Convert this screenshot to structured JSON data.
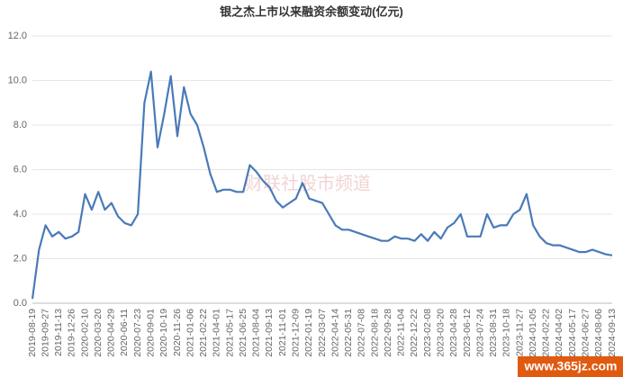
{
  "chart_data": {
    "type": "line",
    "title": "银之杰上市以来融资余额变动(亿元)",
    "watermark": "财联社股市频道",
    "site": "www.365jz.com",
    "categories": [
      "2019-08-19",
      null,
      "2019-09-27",
      null,
      "2019-11-13",
      null,
      "2019-12-26",
      null,
      "2020-02-10",
      null,
      "2020-03-20",
      null,
      "2020-04-29",
      null,
      "2020-06-11",
      null,
      "2020-07-23",
      null,
      "2020-09-01",
      null,
      "2020-10-19",
      null,
      "2020-11-26",
      null,
      "2021-01-06",
      null,
      "2021-02-22",
      null,
      "2021-04-01",
      null,
      "2021-05-17",
      null,
      "2021-06-25",
      null,
      "2021-08-04",
      null,
      "2021-09-13",
      null,
      "2021-11-01",
      null,
      "2021-12-09",
      null,
      "2022-01-19",
      null,
      "2022-03-07",
      null,
      "2022-04-14",
      null,
      "2022-05-31",
      null,
      "2022-07-08",
      null,
      "2022-08-18",
      null,
      "2022-09-28",
      null,
      "2022-11-04",
      null,
      "2022-12-22",
      null,
      "2023-02-08",
      null,
      "2023-03-20",
      null,
      "2023-04-28",
      null,
      "2023-06-12",
      null,
      "2023-07-24",
      null,
      "2023-08-31",
      null,
      "2023-10-18",
      null,
      "2023-11-27",
      null,
      "2024-01-05",
      null,
      "2024-02-22",
      null,
      "2024-04-02",
      null,
      "2024-05-17",
      null,
      "2024-06-27",
      null,
      "2024-08-06",
      null,
      "2024-09-13"
    ],
    "series": [
      {
        "name": "融资余额",
        "color": "#4a7ab8",
        "values": [
          0.2,
          2.4,
          3.5,
          3.0,
          3.2,
          2.9,
          3.0,
          3.2,
          4.9,
          4.2,
          5.0,
          4.2,
          4.5,
          3.9,
          3.6,
          3.5,
          4.0,
          9.0,
          10.4,
          7.0,
          8.5,
          10.2,
          7.5,
          9.7,
          8.5,
          8.0,
          7.0,
          5.8,
          5.0,
          5.1,
          5.1,
          5.0,
          5.0,
          6.2,
          5.9,
          5.5,
          5.2,
          4.6,
          4.3,
          4.5,
          4.7,
          5.4,
          4.7,
          4.6,
          4.5,
          4.0,
          3.5,
          3.3,
          3.3,
          3.2,
          3.1,
          3.0,
          2.9,
          2.8,
          2.8,
          3.0,
          2.9,
          2.9,
          2.8,
          3.1,
          2.8,
          3.2,
          2.9,
          3.4,
          3.6,
          4.0,
          3.0,
          3.0,
          3.0,
          4.0,
          3.4,
          3.5,
          3.5,
          4.0,
          4.2,
          4.9,
          3.5,
          3.0,
          2.7,
          2.6,
          2.6,
          2.5,
          2.4,
          2.3,
          2.3,
          2.4,
          2.3,
          2.2,
          2.15
        ]
      }
    ],
    "ylim": [
      0,
      12
    ],
    "yticks": [
      {
        "value": 0,
        "label": "0.0"
      },
      {
        "value": 2,
        "label": "2.0"
      },
      {
        "value": 4,
        "label": "4.0"
      },
      {
        "value": 6,
        "label": "6.0"
      },
      {
        "value": 8,
        "label": "8.0"
      },
      {
        "value": 10,
        "label": "10.0"
      },
      {
        "value": 12,
        "label": "12.0"
      }
    ],
    "grid": true
  }
}
